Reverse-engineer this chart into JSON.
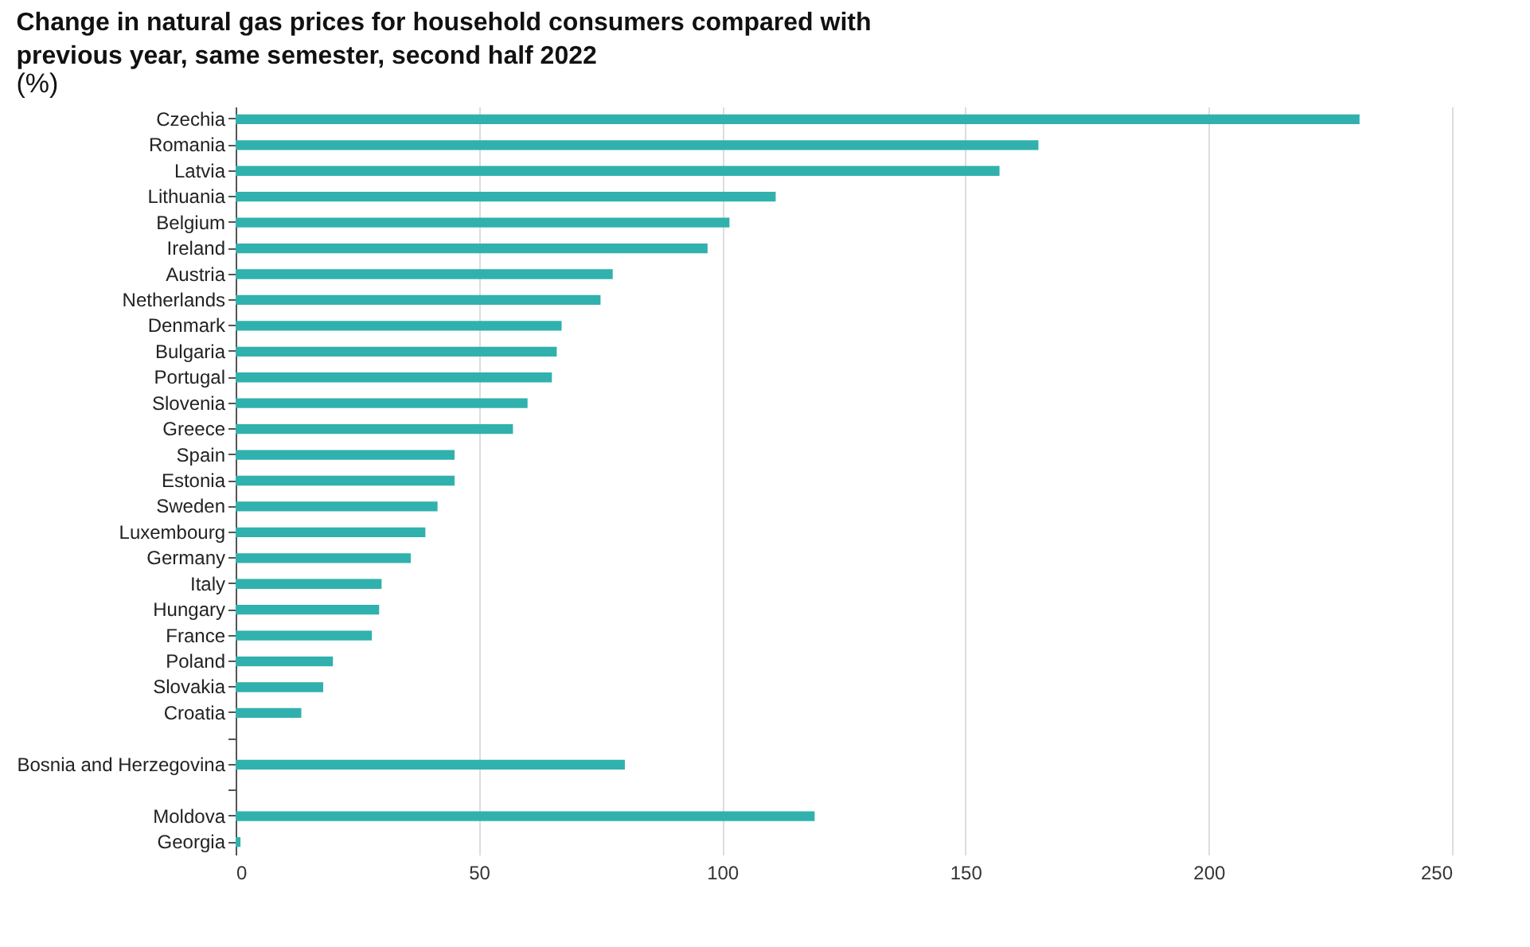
{
  "chart_data": {
    "type": "bar",
    "orientation": "horizontal",
    "title": "Change in natural gas prices for household consumers compared with previous year, same semester, second half 2022",
    "subtitle": "(%)",
    "categories": [
      "Czechia",
      "Romania",
      "Latvia",
      "Lithuania",
      "Belgium",
      "Ireland",
      "Austria",
      "Netherlands",
      "Denmark",
      "Bulgaria",
      "Portugal",
      "Slovenia",
      "Greece",
      "Spain",
      "Estonia",
      "Sweden",
      "Luxembourg",
      "Germany",
      "Italy",
      "Hungary",
      "France",
      "Poland",
      "Slovakia",
      "Croatia",
      null,
      "Bosnia and Herzegovina",
      null,
      "Moldova",
      "Georgia"
    ],
    "values": [
      231,
      165,
      157,
      111,
      101.5,
      97,
      77.5,
      75,
      67,
      66,
      65,
      60,
      57,
      45,
      45,
      41.5,
      39,
      36,
      30,
      29.5,
      28,
      20,
      18,
      13.5,
      null,
      80,
      null,
      119,
      1
    ],
    "color": "#31b1ad",
    "xlim": [
      0,
      250
    ],
    "xticks": [
      0,
      50,
      100,
      150,
      200,
      250
    ],
    "grid": "x"
  }
}
